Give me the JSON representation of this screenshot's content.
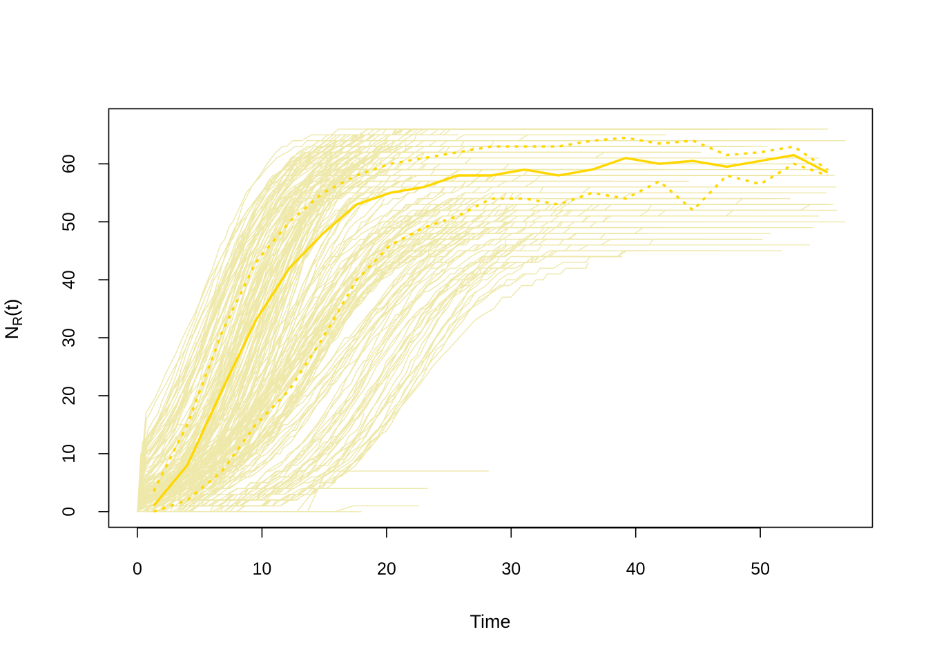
{
  "chart_data": {
    "type": "line",
    "title": "",
    "xlabel": "Time",
    "ylabel_main": "N",
    "ylabel_sub": "R",
    "ylabel_tail": "(t)",
    "xlim": [
      -2.3,
      59
    ],
    "ylim": [
      -2.7,
      69.5
    ],
    "x_ticks": [
      0,
      10,
      20,
      30,
      40,
      50
    ],
    "x_tick_labels": [
      "0",
      "10",
      "20",
      "30",
      "40",
      "50"
    ],
    "y_ticks": [
      0,
      10,
      20,
      30,
      40,
      50,
      60
    ],
    "y_tick_labels": [
      "0",
      "10",
      "20",
      "30",
      "40",
      "50",
      "60"
    ],
    "grid": false,
    "legend": "none",
    "colors": {
      "trajectories": "#EEE8AA",
      "summary": "#FFD700"
    },
    "series": [
      {
        "style": "solid",
        "x": [
          1.3,
          4.0,
          6.8,
          9.5,
          12.2,
          14.9,
          17.6,
          20.3,
          23.0,
          25.7,
          28.4,
          31.1,
          33.8,
          36.5,
          39.2,
          41.9,
          44.6,
          47.3,
          50.0,
          52.7,
          55.4
        ],
        "y": [
          1,
          8,
          21,
          33,
          42,
          48,
          53,
          55,
          56,
          58,
          58,
          59,
          58,
          59,
          61,
          60,
          60.5,
          59.5,
          60.5,
          61.5,
          58.5
        ]
      },
      {
        "style": "dotted",
        "x": [
          1.3,
          4.0,
          6.8,
          9.5,
          12.2,
          14.9,
          17.6,
          20.3,
          23.0,
          25.7,
          28.4,
          31.1,
          33.8,
          36.5,
          39.2,
          41.9,
          44.6,
          47.3,
          50.0,
          52.7,
          55.4
        ],
        "y": [
          3.5,
          15,
          31,
          43,
          50,
          55,
          58,
          60,
          61,
          62,
          63,
          63,
          63,
          64,
          64.5,
          63.5,
          64,
          61.5,
          62,
          63,
          59
        ]
      },
      {
        "style": "dotted",
        "x": [
          1.3,
          4.0,
          6.8,
          9.5,
          12.2,
          14.9,
          17.6,
          20.3,
          23.0,
          25.7,
          28.4,
          31.1,
          33.8,
          36.5,
          39.2,
          41.9,
          44.6,
          47.3,
          50.0,
          52.7,
          55.4
        ],
        "y": [
          0,
          2,
          7,
          15,
          21,
          30,
          40,
          46,
          49,
          51,
          54,
          54,
          53,
          55,
          54,
          57,
          52,
          58,
          56.5,
          60,
          58
        ]
      }
    ],
    "trajectories": {
      "count": 200,
      "runs": [
        {
          "k": 0.32,
          "t0": 7.0,
          "cap": 63
        },
        {
          "k": 0.45,
          "t0": 10.0,
          "cap": 60
        },
        {
          "k": 0.28,
          "t0": 12.5,
          "cap": 56
        },
        {
          "k": 0.22,
          "t0": 14.0,
          "cap": 52
        },
        {
          "k": 0.3,
          "t0": 20.0,
          "cap": 48
        },
        {
          "k": 0.4,
          "t0": 8.5,
          "cap": 66
        }
      ],
      "flat_runs": [
        {
          "level": 7,
          "end": 28.2
        },
        {
          "level": 4,
          "end": 23.3
        },
        {
          "level": 1,
          "end": 22.6
        },
        {
          "level": 0,
          "end": 18.0
        }
      ]
    }
  }
}
